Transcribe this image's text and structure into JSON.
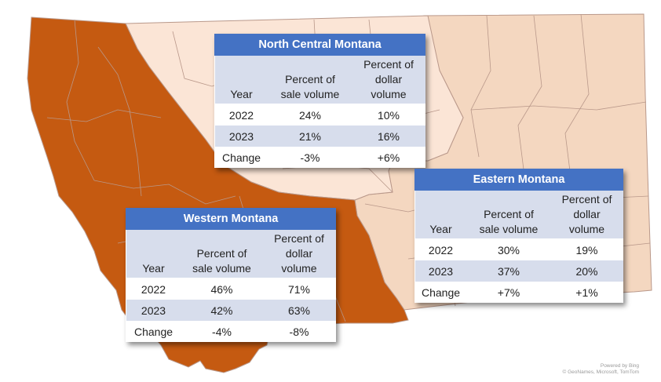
{
  "colors": {
    "western": "#c55a11",
    "north_central": "#fbe5d6",
    "eastern": "#f4d7c0",
    "county_line": "#b9988a",
    "header": "#4472c4",
    "band": "#d7ddec"
  },
  "columns": {
    "year": "Year",
    "sale_line1": "Percent of",
    "sale_line2": "sale volume",
    "dollar_line1": "Percent of",
    "dollar_line2": "dollar volume"
  },
  "tables": {
    "north_central": {
      "title": "North Central Montana",
      "rows": [
        {
          "year": "2022",
          "sale": "24%",
          "dollar": "10%"
        },
        {
          "year": "2023",
          "sale": "21%",
          "dollar": "16%"
        },
        {
          "year": "Change",
          "sale": "-3%",
          "dollar": "+6%"
        }
      ]
    },
    "eastern": {
      "title": "Eastern Montana",
      "rows": [
        {
          "year": "2022",
          "sale": "30%",
          "dollar": "19%"
        },
        {
          "year": "2023",
          "sale": "37%",
          "dollar": "20%"
        },
        {
          "year": "Change",
          "sale": "+7%",
          "dollar": "+1%"
        }
      ]
    },
    "western": {
      "title": "Western Montana",
      "rows": [
        {
          "year": "2022",
          "sale": "46%",
          "dollar": "71%"
        },
        {
          "year": "2023",
          "sale": "42%",
          "dollar": "63%"
        },
        {
          "year": "Change",
          "sale": "-4%",
          "dollar": "-8%"
        }
      ]
    }
  },
  "credit": {
    "line1": "Powered by Bing",
    "line2": "© GeoNames, Microsoft, TomTom"
  }
}
